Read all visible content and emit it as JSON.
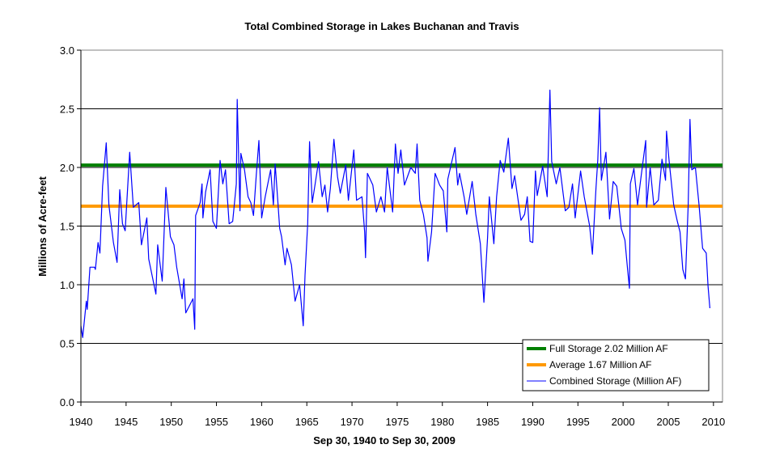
{
  "chart_data": {
    "type": "line",
    "title": "Total Combined Storage in Lakes Buchanan and Travis",
    "xlabel": "Sep 30, 1940 to Sep 30, 2009",
    "ylabel": "Millions of Acre-feet",
    "xlim": [
      1940,
      2011
    ],
    "ylim": [
      0,
      3.0
    ],
    "xticks": [
      "1940",
      "1945",
      "1950",
      "1955",
      "1960",
      "1965",
      "1970",
      "1975",
      "1980",
      "1985",
      "1990",
      "1995",
      "2000",
      "2005",
      "2010"
    ],
    "yticks": [
      "0.0",
      "0.5",
      "1.0",
      "1.5",
      "2.0",
      "2.5",
      "3.0"
    ],
    "grid": true,
    "legend_position": "bottom-right",
    "reference_lines": [
      {
        "name": "Full Storage 2.02 Million AF",
        "value": 2.02,
        "color": "#008000"
      },
      {
        "name": "Average 1.67 Million AF",
        "value": 1.67,
        "color": "#FF9900"
      }
    ],
    "series": [
      {
        "name": "Combined Storage (Million AF)",
        "color": "#0000FF",
        "x": [
          1940.0,
          1940.2,
          1940.6,
          1940.7,
          1941.0,
          1941.5,
          1941.6,
          1941.9,
          1942.1,
          1942.4,
          1942.8,
          1943.1,
          1943.6,
          1944.0,
          1944.3,
          1944.6,
          1944.9,
          1945.4,
          1945.8,
          1946.4,
          1946.7,
          1947.3,
          1947.5,
          1948.3,
          1948.5,
          1949.0,
          1949.4,
          1949.9,
          1950.3,
          1950.6,
          1951.2,
          1951.4,
          1951.6,
          1952.4,
          1952.6,
          1952.7,
          1953.2,
          1953.4,
          1953.5,
          1953.8,
          1954.3,
          1954.6,
          1955.0,
          1955.4,
          1955.7,
          1956.0,
          1956.4,
          1956.8,
          1957.2,
          1957.3,
          1957.6,
          1957.7,
          1958.1,
          1958.5,
          1958.8,
          1959.1,
          1959.4,
          1959.7,
          1960.0,
          1960.4,
          1961.0,
          1961.3,
          1961.5,
          1961.8,
          1962.0,
          1962.2,
          1962.6,
          1962.8,
          1963.3,
          1963.7,
          1964.2,
          1964.6,
          1964.8,
          1965.1,
          1965.3,
          1965.6,
          1965.9,
          1966.3,
          1966.7,
          1967.0,
          1967.3,
          1967.6,
          1968.0,
          1968.4,
          1968.7,
          1969.3,
          1969.6,
          1970.2,
          1970.5,
          1971.1,
          1971.4,
          1971.5,
          1971.7,
          1972.3,
          1972.7,
          1973.2,
          1973.6,
          1973.9,
          1974.5,
          1974.8,
          1975.1,
          1975.4,
          1975.8,
          1976.5,
          1977.0,
          1977.2,
          1977.5,
          1977.9,
          1978.3,
          1978.4,
          1978.8,
          1979.2,
          1979.7,
          1980.1,
          1980.5,
          1980.6,
          1981.4,
          1981.7,
          1981.9,
          1982.4,
          1982.7,
          1983.3,
          1983.7,
          1984.2,
          1984.6,
          1985.0,
          1985.2,
          1985.7,
          1986.0,
          1986.4,
          1986.8,
          1987.3,
          1987.7,
          1988.0,
          1988.7,
          1989.1,
          1989.4,
          1989.7,
          1990.0,
          1990.3,
          1990.5,
          1991.1,
          1991.6,
          1991.9,
          1992.1,
          1992.6,
          1993.0,
          1993.6,
          1994.0,
          1994.4,
          1994.7,
          1995.3,
          1995.7,
          1996.3,
          1996.6,
          1997.0,
          1997.2,
          1997.4,
          1997.6,
          1998.1,
          1998.5,
          1998.9,
          1999.3,
          1999.8,
          2000.2,
          2000.5,
          2000.7,
          2000.8,
          2001.2,
          2001.6,
          2002.0,
          2002.5,
          2002.6,
          2003.0,
          2003.4,
          2003.9,
          2004.3,
          2004.7,
          2004.8,
          2005.1,
          2005.6,
          2006.0,
          2006.3,
          2006.6,
          2006.9,
          2007.2,
          2007.4,
          2007.6,
          2008.0,
          2008.4,
          2008.8,
          2009.2,
          2009.4,
          2009.6
        ],
        "values": [
          0.65,
          0.55,
          0.86,
          0.79,
          1.15,
          1.15,
          1.13,
          1.36,
          1.27,
          1.84,
          2.21,
          1.68,
          1.36,
          1.19,
          1.81,
          1.52,
          1.46,
          2.13,
          1.66,
          1.7,
          1.34,
          1.57,
          1.22,
          0.92,
          1.34,
          1.03,
          1.83,
          1.41,
          1.34,
          1.15,
          0.88,
          1.05,
          0.76,
          0.88,
          0.62,
          1.59,
          1.7,
          1.86,
          1.57,
          1.79,
          1.98,
          1.54,
          1.48,
          2.06,
          1.86,
          1.98,
          1.52,
          1.54,
          1.86,
          2.58,
          1.63,
          2.12,
          1.98,
          1.75,
          1.7,
          1.59,
          1.93,
          2.23,
          1.57,
          1.75,
          1.98,
          1.68,
          2.03,
          1.7,
          1.48,
          1.41,
          1.17,
          1.31,
          1.17,
          0.86,
          1.0,
          0.65,
          1.08,
          1.52,
          2.22,
          1.7,
          1.85,
          2.05,
          1.75,
          1.85,
          1.62,
          1.82,
          2.24,
          1.92,
          1.78,
          2.02,
          1.72,
          2.15,
          1.72,
          1.75,
          1.45,
          1.23,
          1.95,
          1.85,
          1.62,
          1.75,
          1.62,
          2.0,
          1.62,
          2.2,
          1.95,
          2.15,
          1.85,
          2.0,
          1.95,
          2.2,
          1.72,
          1.6,
          1.4,
          1.2,
          1.45,
          1.95,
          1.85,
          1.8,
          1.45,
          1.9,
          2.17,
          1.85,
          1.95,
          1.75,
          1.6,
          1.88,
          1.6,
          1.35,
          0.85,
          1.4,
          1.75,
          1.35,
          1.75,
          2.06,
          1.96,
          2.25,
          1.82,
          1.93,
          1.55,
          1.6,
          1.75,
          1.37,
          1.36,
          1.97,
          1.76,
          2.01,
          1.75,
          2.66,
          2.05,
          1.86,
          2.0,
          1.63,
          1.66,
          1.86,
          1.57,
          1.97,
          1.75,
          1.5,
          1.26,
          1.82,
          2.07,
          2.51,
          1.89,
          2.13,
          1.56,
          1.88,
          1.84,
          1.48,
          1.38,
          1.13,
          0.97,
          1.86,
          1.99,
          1.68,
          1.93,
          2.23,
          1.66,
          2.0,
          1.68,
          1.72,
          2.07,
          1.89,
          2.31,
          2.05,
          1.68,
          1.54,
          1.45,
          1.13,
          1.05,
          1.68,
          2.41,
          1.98,
          2.0,
          1.68,
          1.31,
          1.27,
          0.99,
          0.8
        ]
      }
    ]
  }
}
